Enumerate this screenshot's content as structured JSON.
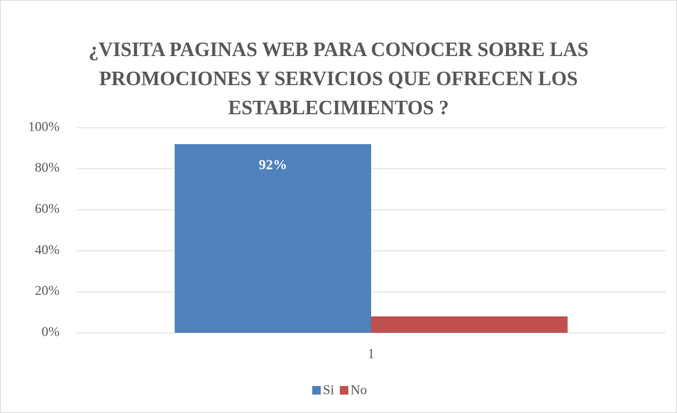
{
  "chart_data": {
    "type": "bar",
    "title": "¿VISITA PAGINAS WEB PARA CONOCER SOBRE LAS PROMOCIONES Y SERVICIOS QUE OFRECEN LOS ESTABLECIMIENTOS ?",
    "categories": [
      "1"
    ],
    "series": [
      {
        "name": "Si",
        "color": "#4f81bd",
        "values": [
          92
        ],
        "value_labels": [
          "92%"
        ]
      },
      {
        "name": "No",
        "color": "#c0504d",
        "values": [
          8
        ]
      }
    ],
    "ylim": [
      0,
      100
    ],
    "yticks": [
      {
        "value": 0,
        "label": "0%"
      },
      {
        "value": 20,
        "label": "20%"
      },
      {
        "value": 40,
        "label": "40%"
      },
      {
        "value": 60,
        "label": "60%"
      },
      {
        "value": 80,
        "label": "80%"
      },
      {
        "value": 100,
        "label": "100%"
      }
    ],
    "grid": true,
    "legend": "bottom"
  }
}
